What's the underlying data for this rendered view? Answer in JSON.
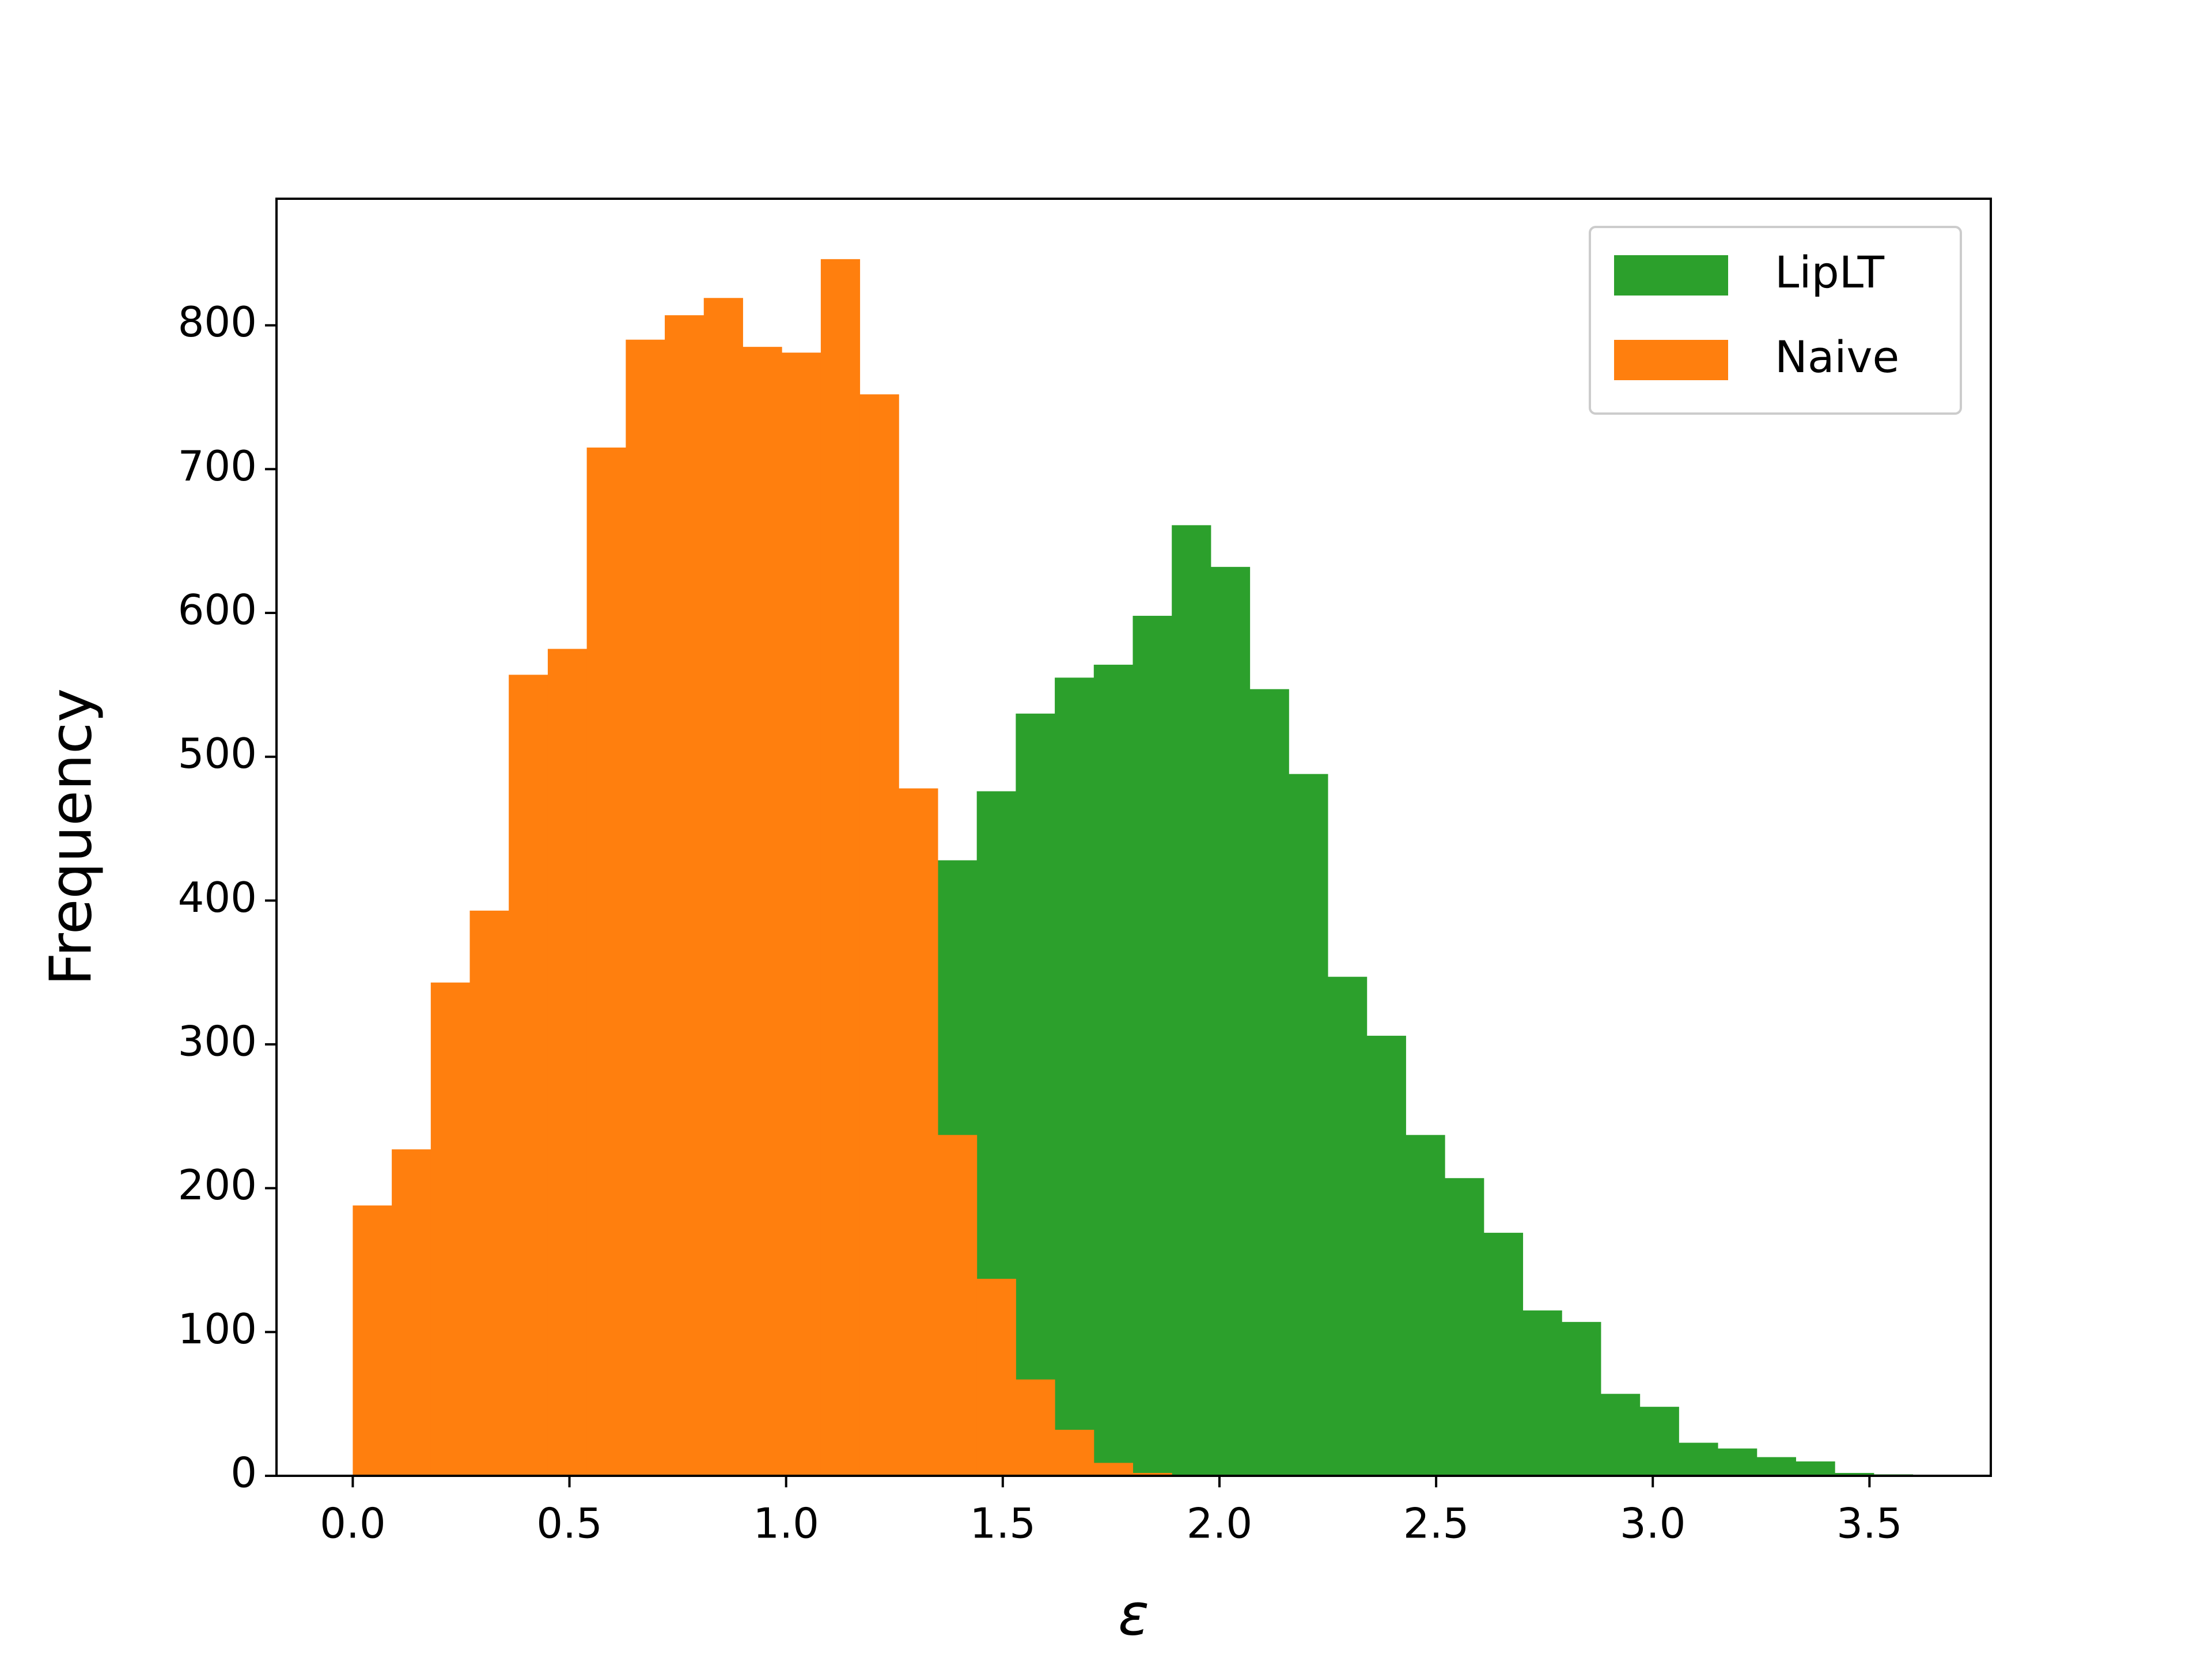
{
  "chart_data": {
    "type": "histogram",
    "xlabel": "ε",
    "ylabel": "Frequency",
    "bins": [
      0,
      0.09,
      0.18,
      0.27,
      0.36,
      0.45,
      0.54,
      0.63,
      0.72,
      0.81,
      0.9,
      0.99,
      1.08,
      1.17,
      1.26,
      1.35,
      1.44,
      1.53,
      1.62,
      1.71,
      1.8,
      1.89,
      1.98,
      2.07,
      2.16,
      2.25,
      2.34,
      2.43,
      2.52,
      2.61,
      2.7,
      2.79,
      2.88,
      2.97,
      3.06,
      3.15,
      3.24,
      3.33,
      3.42,
      3.51,
      3.6
    ],
    "series": [
      {
        "name": "LipLT",
        "color": "#2ca02c",
        "values": [
          null,
          null,
          null,
          null,
          null,
          null,
          null,
          null,
          null,
          null,
          null,
          null,
          null,
          null,
          null,
          428,
          476,
          530,
          555,
          564,
          598,
          661,
          632,
          547,
          488,
          347,
          306,
          237,
          207,
          169,
          115,
          107,
          57,
          48,
          23,
          19,
          13,
          10,
          2,
          1
        ]
      },
      {
        "name": "Naive",
        "color": "#ff7f0e",
        "values": [
          188,
          227,
          343,
          393,
          557,
          575,
          715,
          790,
          807,
          819,
          785,
          781,
          846,
          752,
          478,
          237,
          137,
          67,
          32,
          9,
          2,
          0,
          0,
          0,
          0,
          0,
          0,
          0,
          0,
          0,
          0,
          0,
          0,
          0,
          0,
          0,
          0,
          0,
          0,
          0
        ]
      }
    ],
    "xlim": [
      -0.176,
      3.78
    ],
    "xticks": [
      {
        "value": 0,
        "label": "0.0"
      },
      0.5,
      {
        "value": 1,
        "label": "1.0"
      },
      1.5,
      {
        "value": 2,
        "label": "2.0"
      },
      2.5,
      {
        "value": 3,
        "label": "3.0"
      },
      3.5
    ],
    "ylim": [
      0,
      888
    ],
    "yticks": [
      0,
      100,
      200,
      300,
      400,
      500,
      600,
      700,
      800
    ],
    "grid": false,
    "legend": "upper right"
  }
}
